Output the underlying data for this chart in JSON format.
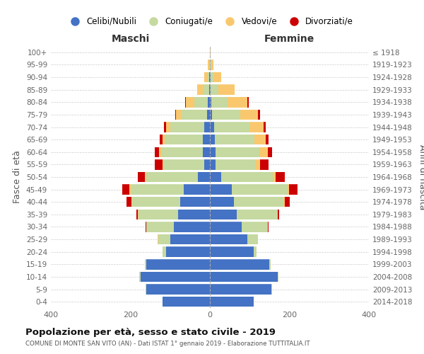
{
  "age_groups": [
    "0-4",
    "5-9",
    "10-14",
    "15-19",
    "20-24",
    "25-29",
    "30-34",
    "35-39",
    "40-44",
    "45-49",
    "50-54",
    "55-59",
    "60-64",
    "65-69",
    "70-74",
    "75-79",
    "80-84",
    "85-89",
    "90-94",
    "95-99",
    "100+"
  ],
  "birth_years": [
    "2014-2018",
    "2009-2013",
    "2004-2008",
    "1999-2003",
    "1994-1998",
    "1989-1993",
    "1984-1988",
    "1979-1983",
    "1974-1978",
    "1969-1973",
    "1964-1968",
    "1959-1963",
    "1954-1958",
    "1949-1953",
    "1944-1948",
    "1939-1943",
    "1934-1938",
    "1929-1933",
    "1924-1928",
    "1919-1923",
    "≤ 1918"
  ],
  "maschi": {
    "celibi": [
      120,
      160,
      175,
      160,
      110,
      100,
      90,
      80,
      75,
      65,
      30,
      15,
      18,
      18,
      15,
      8,
      5,
      2,
      1,
      0,
      0
    ],
    "coniugati": [
      0,
      1,
      2,
      3,
      10,
      30,
      70,
      100,
      120,
      135,
      130,
      100,
      105,
      95,
      85,
      65,
      35,
      15,
      5,
      2,
      0
    ],
    "vedovi": [
      0,
      0,
      0,
      0,
      0,
      1,
      0,
      1,
      2,
      2,
      4,
      4,
      5,
      6,
      10,
      12,
      20,
      15,
      8,
      3,
      0
    ],
    "divorziati": [
      0,
      0,
      0,
      0,
      0,
      0,
      2,
      4,
      12,
      18,
      18,
      20,
      10,
      8,
      5,
      3,
      2,
      0,
      0,
      0,
      0
    ]
  },
  "femmine": {
    "nubili": [
      110,
      155,
      170,
      150,
      110,
      95,
      80,
      68,
      60,
      55,
      28,
      15,
      15,
      12,
      10,
      6,
      4,
      2,
      1,
      0,
      0
    ],
    "coniugate": [
      0,
      1,
      2,
      3,
      8,
      25,
      65,
      100,
      125,
      140,
      130,
      100,
      110,
      100,
      90,
      70,
      40,
      20,
      8,
      3,
      0
    ],
    "vedove": [
      0,
      0,
      0,
      0,
      0,
      0,
      1,
      2,
      4,
      4,
      8,
      12,
      20,
      28,
      35,
      45,
      50,
      40,
      20,
      5,
      1
    ],
    "divorziate": [
      0,
      0,
      0,
      0,
      0,
      1,
      2,
      5,
      12,
      22,
      22,
      20,
      12,
      8,
      6,
      5,
      3,
      1,
      0,
      0,
      0
    ]
  },
  "colors": {
    "celibi": "#4472c4",
    "coniugati": "#c5d9a0",
    "vedovi": "#f9c86e",
    "divorziati": "#cc0000"
  },
  "title": "Popolazione per età, sesso e stato civile - 2019",
  "subtitle": "COMUNE DI MONTE SAN VITO (AN) - Dati ISTAT 1° gennaio 2019 - Elaborazione TUTTITALIA.IT",
  "label_maschi": "Maschi",
  "label_femmine": "Femmine",
  "ylabel_left": "Fasce di età",
  "ylabel_right": "Anni di nascita",
  "xlim": 400,
  "legend_labels": [
    "Celibi/Nubili",
    "Coniugati/e",
    "Vedovi/e",
    "Divorziati/e"
  ]
}
